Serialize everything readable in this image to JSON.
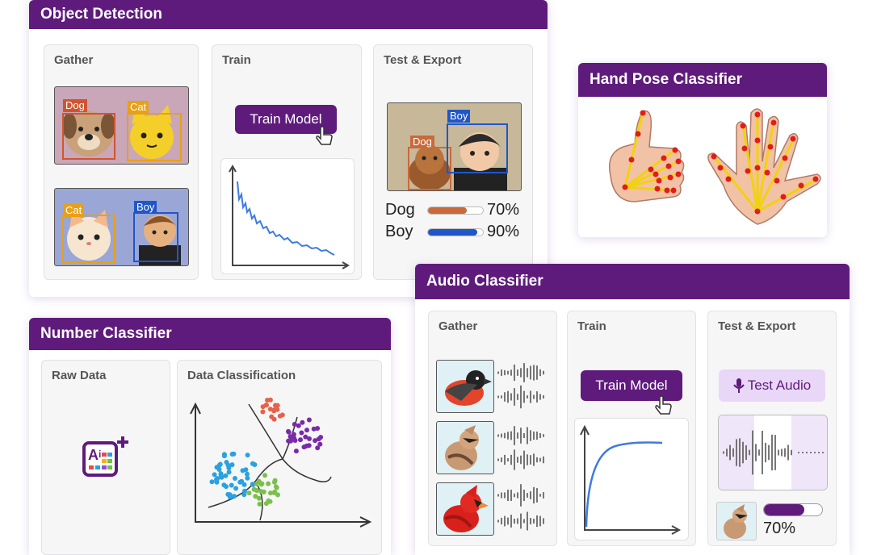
{
  "object_detection": {
    "title": "Object Detection",
    "gather": {
      "label": "Gather",
      "image1_tags": [
        "Dog",
        "Cat"
      ],
      "image2_tags": [
        "Cat",
        "Boy"
      ]
    },
    "train": {
      "label": "Train",
      "button": "Train Model"
    },
    "test": {
      "label": "Test & Export",
      "image_tags": [
        "Boy",
        "Dog"
      ],
      "results": [
        {
          "name": "Dog",
          "percent": "70%",
          "value": 0.7,
          "color": "#c96a3a"
        },
        {
          "name": "Boy",
          "percent": "90%",
          "value": 0.9,
          "color": "#1f57c8"
        }
      ]
    }
  },
  "hand_pose": {
    "title": "Hand Pose Classifier"
  },
  "audio": {
    "title": "Audio Classifier",
    "gather": {
      "label": "Gather"
    },
    "train": {
      "label": "Train",
      "button": "Train Model"
    },
    "test": {
      "label": "Test & Export",
      "button": "Test Audio",
      "percent": "70%",
      "value": 0.7
    }
  },
  "number": {
    "title": "Number Classifier",
    "raw": {
      "label": "Raw Data",
      "icon": "ai-table-icon"
    },
    "classification": {
      "label": "Data Classification"
    }
  },
  "colors": {
    "brand": "#5f1b7c",
    "accent_light": "#e9d7f7",
    "curve": "#3d7be0"
  }
}
